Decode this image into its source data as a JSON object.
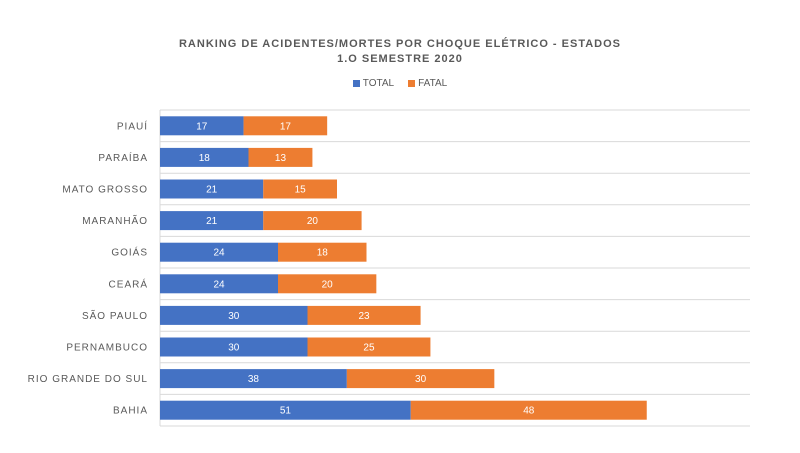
{
  "chart_data": {
    "type": "bar",
    "orientation": "horizontal",
    "stacked": true,
    "title": "RANKING DE ACIDENTES/MORTES POR CHOQUE ELÉTRICO - ESTADOS",
    "subtitle": "1.O SEMESTRE 2020",
    "categories": [
      "PIAUÍ",
      "PARAÍBA",
      "MATO GROSSO",
      "MARANHÃO",
      "GOIÁS",
      "CEARÁ",
      "SÃO PAULO",
      "PERNAMBUCO",
      "RIO GRANDE DO SUL",
      "BAHIA"
    ],
    "series": [
      {
        "name": "TOTAL",
        "values": [
          17,
          18,
          21,
          21,
          24,
          24,
          30,
          30,
          38,
          51
        ],
        "color": "#4472C4"
      },
      {
        "name": "FATAL",
        "values": [
          17,
          13,
          15,
          20,
          18,
          20,
          23,
          25,
          30,
          48
        ],
        "color": "#ED7D31"
      }
    ],
    "xlim": [
      0,
      120
    ],
    "grid": true,
    "legend_position": "top"
  }
}
